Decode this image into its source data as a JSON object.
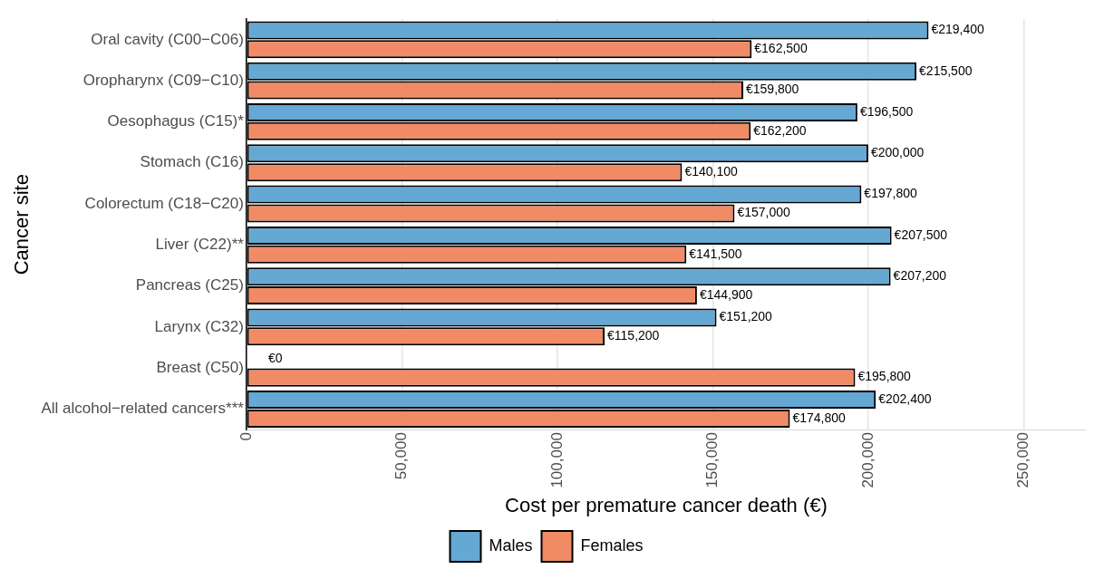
{
  "chart_data": {
    "type": "bar",
    "orientation": "horizontal",
    "xlabel": "Cost per premature cancer death (€)",
    "ylabel": "Cancer site",
    "categories": [
      "Oral cavity (C00−C06)",
      "Oropharynx (C09−C10)",
      "Oesophagus (C15)*",
      "Stomach (C16)",
      "Colorectum (C18−C20)",
      "Liver (C22)**",
      "Pancreas (C25)",
      "Larynx (C32)",
      "Breast (C50)",
      "All alcohol−related cancers***"
    ],
    "series": [
      {
        "name": "Males",
        "color": "#65a8d3",
        "values": [
          219400,
          215500,
          196500,
          200000,
          197800,
          207500,
          207200,
          151200,
          0,
          202400
        ],
        "value_labels": [
          "€219,400",
          "€215,500",
          "€196,500",
          "€200,000",
          "€197,800",
          "€207,500",
          "€207,200",
          "€151,200",
          "€0",
          "€202,400"
        ]
      },
      {
        "name": "Females",
        "color": "#f08b65",
        "values": [
          162500,
          159800,
          162200,
          140100,
          157000,
          141500,
          144900,
          115200,
          195800,
          174800
        ],
        "value_labels": [
          "€162,500",
          "€159,800",
          "€162,200",
          "€140,100",
          "€157,000",
          "€141,500",
          "€144,900",
          "€115,200",
          "€195,800",
          "€174,800"
        ]
      }
    ],
    "xlim": [
      0,
      270000
    ],
    "xticks": [
      0,
      {
        "value": 50000,
        "label": "50,000"
      },
      {
        "value": 100000,
        "label": "100,000"
      },
      {
        "value": 150000,
        "label": "150,000"
      },
      {
        "value": 200000,
        "label": "200,000"
      },
      {
        "value": 250000,
        "label": "250,000"
      }
    ],
    "grid": "x",
    "legend": "bottom"
  }
}
